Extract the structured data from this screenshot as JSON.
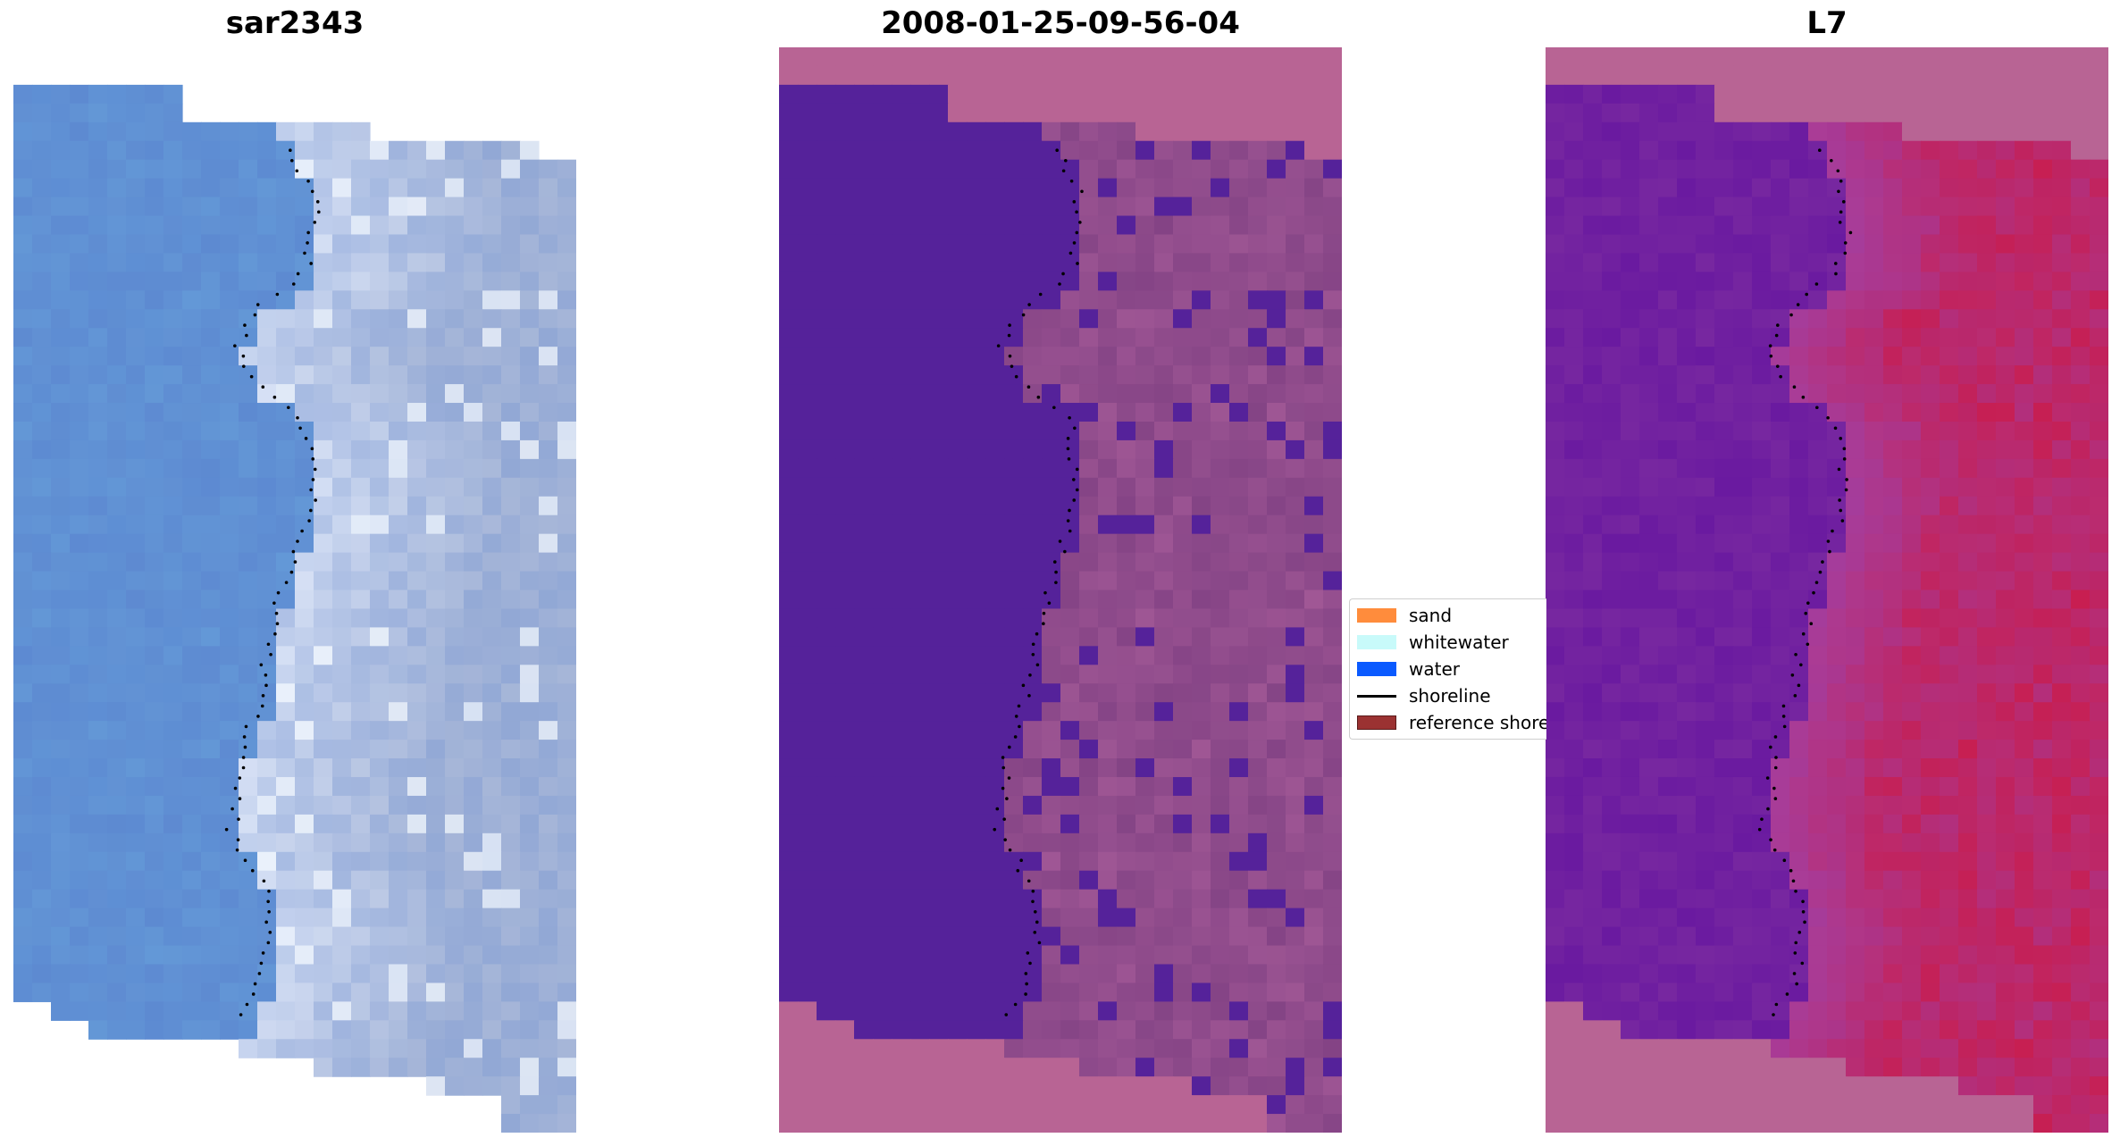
{
  "panels": {
    "left": {
      "title": "sar2343"
    },
    "middle": {
      "title": "2008-01-25-09-56-04"
    },
    "right": {
      "title": "L7"
    }
  },
  "legend": {
    "items": [
      {
        "label": "sand",
        "color": "#ff8c3c",
        "kind": "patch"
      },
      {
        "label": "whitewater",
        "color": "#c8fafa",
        "kind": "patch"
      },
      {
        "label": "water",
        "color": "#0a5aff",
        "kind": "patch"
      },
      {
        "label": "shoreline",
        "color": "#000000",
        "kind": "line"
      },
      {
        "label": "reference shoreline",
        "color": "#9b3232",
        "kind": "patch"
      }
    ]
  },
  "colors": {
    "rgb_water": "#5e8fd4",
    "rgb_land": "#a6b6d8",
    "classified_background": "#b86494",
    "classified_water": "#55229a",
    "classified_land": "#8c4a8a",
    "mndwi_background": "#b86494",
    "mndwi_low": "#6a1aa0",
    "mndwi_high": "#c81e50"
  }
}
